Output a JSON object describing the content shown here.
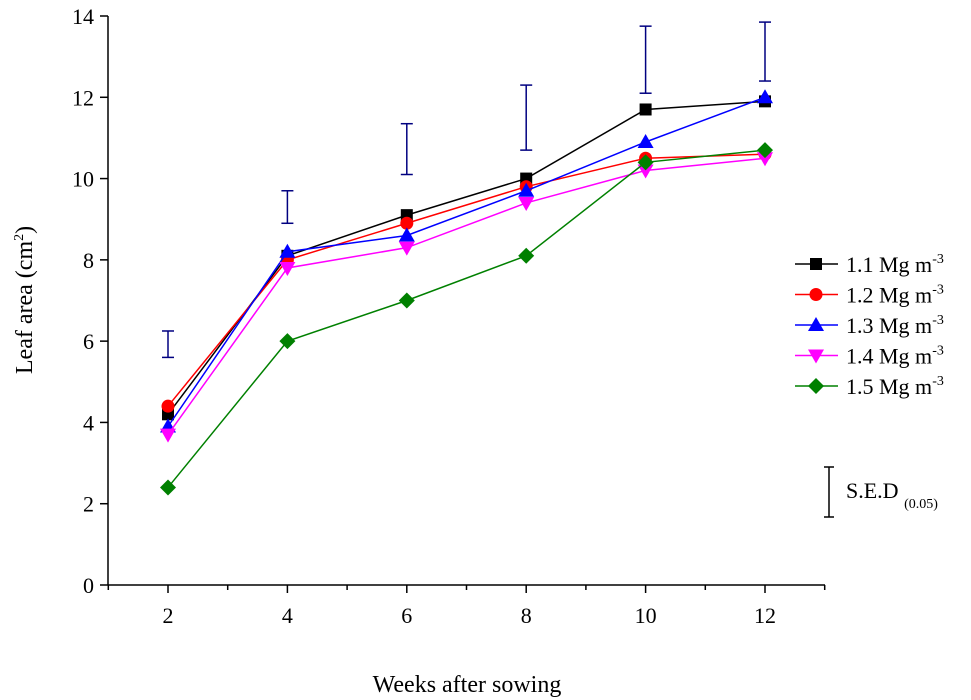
{
  "chart_data": {
    "type": "line",
    "title": "",
    "xlabel": "Weeks after sowing",
    "ylabel": "Leaf area (cm",
    "ylabel_sup": "2",
    "ylabel_end": ")",
    "x": [
      2,
      4,
      6,
      8,
      10,
      12
    ],
    "xlim": [
      1,
      13
    ],
    "ylim": [
      0,
      14
    ],
    "yticks": [
      0,
      2,
      4,
      6,
      8,
      10,
      12,
      14
    ],
    "grid": false,
    "legend_placement": "right",
    "series": [
      {
        "name": "1.1 Mg m",
        "sup": "-3",
        "color": "#000000",
        "marker": "square",
        "values": [
          4.2,
          8.1,
          9.1,
          10.0,
          11.7,
          11.9
        ]
      },
      {
        "name": "1.2 Mg m",
        "sup": "-3",
        "color": "#ff0000",
        "marker": "circle",
        "values": [
          4.4,
          8.0,
          8.9,
          9.8,
          10.5,
          10.6
        ]
      },
      {
        "name": "1.3 Mg m",
        "sup": "-3",
        "color": "#0000ff",
        "marker": "triangle-up",
        "values": [
          3.9,
          8.2,
          8.6,
          9.7,
          10.9,
          12.0
        ]
      },
      {
        "name": "1.4 Mg m",
        "sup": "-3",
        "color": "#ff00ff",
        "marker": "triangle-down",
        "values": [
          3.7,
          7.8,
          8.3,
          9.4,
          10.2,
          10.5
        ]
      },
      {
        "name": "1.5 Mg m",
        "sup": "-3",
        "color": "#008000",
        "marker": "diamond",
        "values": [
          2.4,
          6.0,
          7.0,
          8.1,
          10.4,
          10.7
        ]
      }
    ],
    "sed": {
      "name": "S.E.D",
      "sub": "(0.05)",
      "color": "#000080",
      "low": [
        5.6,
        8.9,
        10.1,
        10.7,
        12.1,
        12.4
      ],
      "high": [
        6.25,
        9.7,
        11.35,
        12.3,
        13.75,
        13.85
      ]
    }
  }
}
